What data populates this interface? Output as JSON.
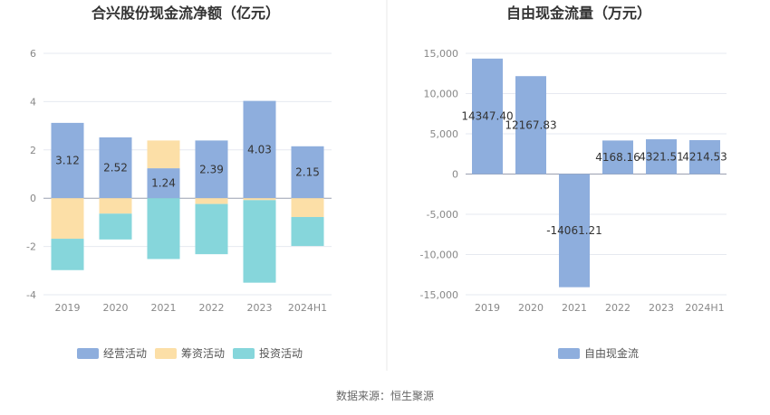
{
  "source": "数据来源：恒生聚源",
  "chart_data": [
    {
      "type": "bar",
      "stacked": true,
      "title": "合兴股份现金流净额（亿元）",
      "categories": [
        "2019",
        "2020",
        "2021",
        "2022",
        "2023",
        "2024H1"
      ],
      "ylim": [
        -4,
        6
      ],
      "yticks": [
        -4,
        -2,
        0,
        2,
        4,
        6
      ],
      "grid": true,
      "legend_position": "bottom",
      "series": [
        {
          "name": "经营活动",
          "color": "#8eaedd",
          "values": [
            3.12,
            2.52,
            1.24,
            2.39,
            4.03,
            2.15
          ],
          "labels": [
            "3.12",
            "2.52",
            "1.24",
            "2.39",
            "4.03",
            "2.15"
          ]
        },
        {
          "name": "筹资活动",
          "color": "#fcdfa7",
          "values": [
            -1.68,
            -0.64,
            1.15,
            -0.24,
            -0.08,
            -0.78
          ]
        },
        {
          "name": "投资活动",
          "color": "#86d6db",
          "values": [
            -1.3,
            -1.07,
            -2.52,
            -2.08,
            -3.42,
            -1.2
          ]
        }
      ]
    },
    {
      "type": "bar",
      "title": "自由现金流量（万元）",
      "categories": [
        "2019",
        "2020",
        "2021",
        "2022",
        "2023",
        "2024H1"
      ],
      "ylim": [
        -15000,
        15000
      ],
      "yticks": [
        -15000,
        -10000,
        -5000,
        0,
        5000,
        10000,
        15000
      ],
      "ytick_labels": [
        "-15,000",
        "-10,000",
        "-5,000",
        "0",
        "5,000",
        "10,000",
        "15,000"
      ],
      "grid": true,
      "legend_position": "bottom",
      "series": [
        {
          "name": "自由现金流",
          "color": "#8eaedd",
          "values": [
            14347.4,
            12167.83,
            -14061.21,
            4168.16,
            4321.51,
            4214.53
          ],
          "labels": [
            "14347.40",
            "12167.83",
            "-14061.21",
            "4168.16",
            "4321.51",
            "4214.53"
          ]
        }
      ]
    }
  ]
}
